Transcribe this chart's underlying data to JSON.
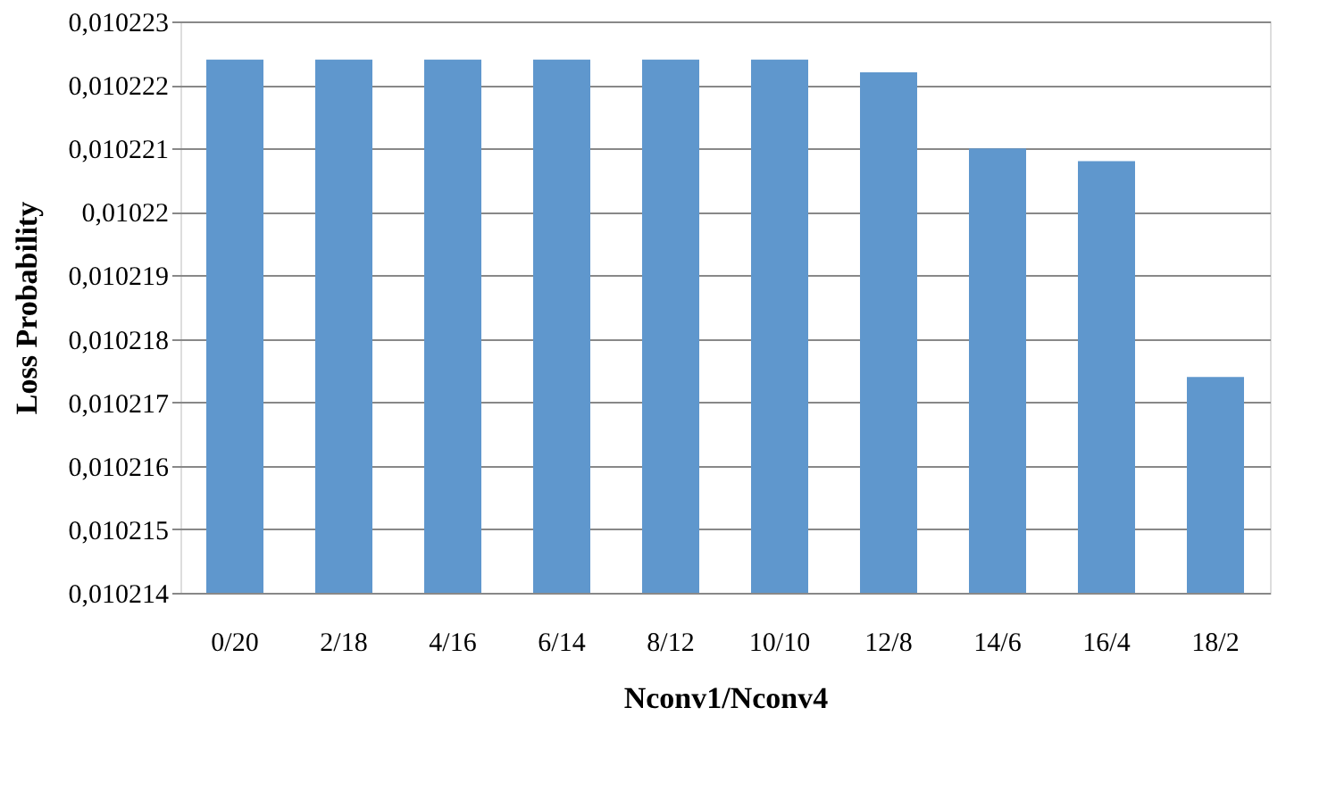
{
  "chart_data": {
    "type": "bar",
    "xlabel": "Nconv1/Nconv4",
    "ylabel": "Loss Probability",
    "categories": [
      "0/20",
      "2/18",
      "4/16",
      "6/14",
      "8/12",
      "10/10",
      "12/8",
      "14/6",
      "16/4",
      "18/2"
    ],
    "values": [
      0.0102224,
      0.0102224,
      0.0102224,
      0.0102224,
      0.0102224,
      0.0102224,
      0.0102222,
      0.010221,
      0.0102208,
      0.0102174
    ],
    "color": "#5f97cd",
    "ylim": [
      0.010214,
      0.010223
    ],
    "yticks": [
      {
        "value": 0.010214,
        "label": "0,010214"
      },
      {
        "value": 0.010215,
        "label": "0,010215"
      },
      {
        "value": 0.010216,
        "label": "0,010216"
      },
      {
        "value": 0.010217,
        "label": "0,010217"
      },
      {
        "value": 0.010218,
        "label": "0,010218"
      },
      {
        "value": 0.010219,
        "label": "0,010219"
      },
      {
        "value": 0.01022,
        "label": "0,01022"
      },
      {
        "value": 0.010221,
        "label": "0,010221"
      },
      {
        "value": 0.010222,
        "label": "0,010222"
      },
      {
        "value": 0.010223,
        "label": "0,010223"
      }
    ],
    "grid": "y"
  }
}
